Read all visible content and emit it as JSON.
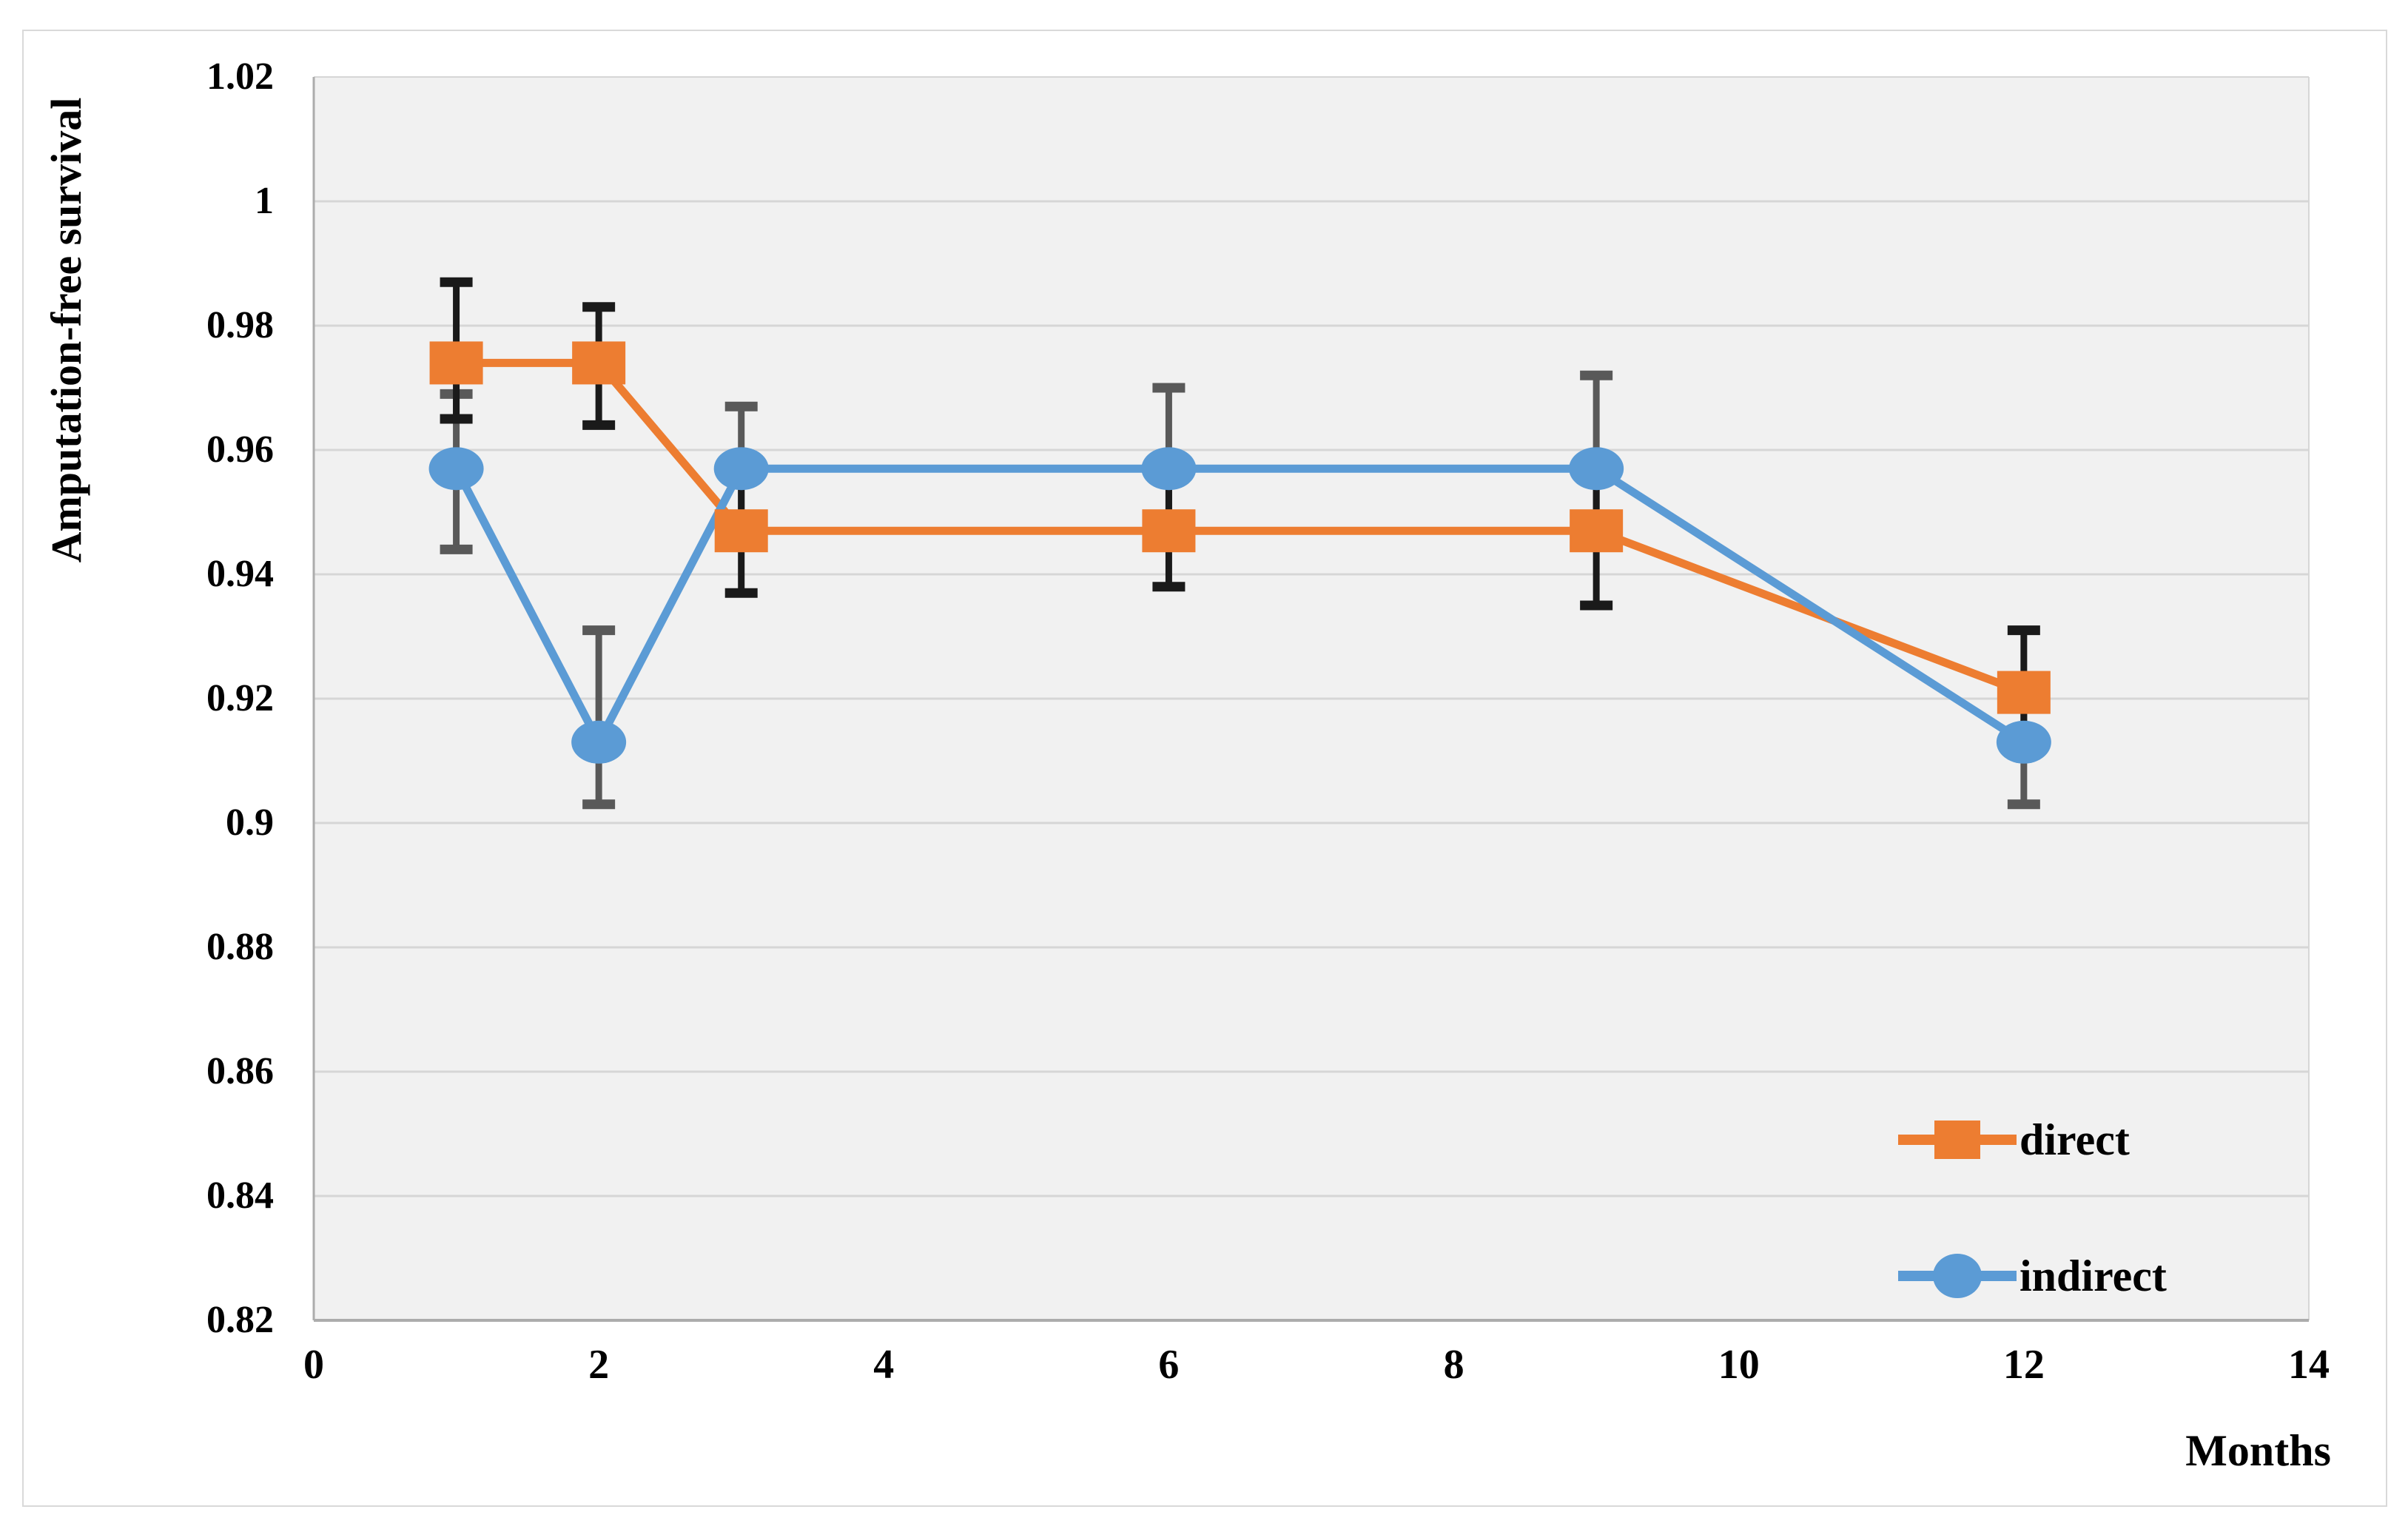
{
  "chart_data": {
    "type": "line",
    "title": "",
    "xlabel": "Months",
    "ylabel": "Amputation-free survival",
    "xlim": [
      0,
      14
    ],
    "ylim": [
      0.82,
      1.02
    ],
    "x_ticks": [
      0,
      2,
      4,
      6,
      8,
      10,
      12,
      14
    ],
    "x_tick_labels": [
      "0",
      "2",
      "4",
      "6",
      "8",
      "10",
      "12",
      "14"
    ],
    "y_ticks": [
      0.82,
      0.84,
      0.86,
      0.88,
      0.9,
      0.92,
      0.94,
      0.96,
      0.98,
      1,
      1.02
    ],
    "y_tick_labels": [
      "0.82",
      "0.84",
      "0.86",
      "0.88",
      "0.9",
      "0.92",
      "0.94",
      "0.96",
      "0.98",
      "1",
      "1.02"
    ],
    "grid": "horizontal",
    "legend_position": "inside-bottom-right",
    "plot_bg": "#F1F1F1",
    "grid_color": "#D6D6D6",
    "axis_line_color": "#ACACAC",
    "x": [
      1,
      2,
      3,
      6,
      9,
      12
    ],
    "series": [
      {
        "name": "direct",
        "color": "#ED7D31",
        "error_color": "#1A1A1A",
        "marker": "square",
        "values": [
          0.974,
          0.974,
          0.947,
          0.947,
          0.947,
          0.921
        ],
        "err_high": [
          0.987,
          0.983,
          0.957,
          0.957,
          0.958,
          0.931
        ],
        "err_low": [
          0.965,
          0.964,
          0.937,
          0.938,
          0.935,
          0.911
        ]
      },
      {
        "name": "indirect",
        "color": "#5B9BD5",
        "error_color": "#595959",
        "marker": "circle",
        "values": [
          0.957,
          0.913,
          0.957,
          0.957,
          0.957,
          0.913
        ],
        "err_high": [
          0.969,
          0.931,
          0.967,
          0.97,
          0.972,
          0.923
        ],
        "err_low": [
          0.944,
          0.903,
          0.946,
          0.945,
          0.945,
          0.903
        ]
      }
    ]
  }
}
